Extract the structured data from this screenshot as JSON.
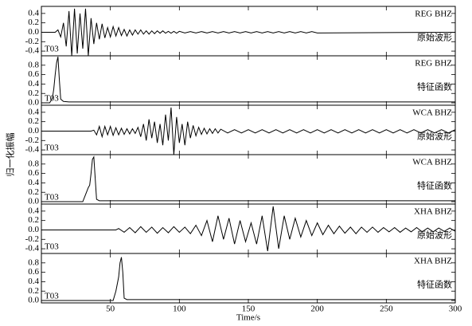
{
  "chart_data": [
    {
      "type": "line",
      "station_label": "REG BHZ",
      "panel_label": "原始波形",
      "phase_label": "T03",
      "xlim": [
        0,
        300
      ],
      "ylim": [
        -0.5,
        0.55
      ],
      "yticks": [
        -0.4,
        -0.2,
        {
          "value": 0,
          "label": "0.0"
        },
        0.2,
        0.4
      ],
      "x": [
        0,
        10,
        12,
        14,
        16,
        18,
        20,
        22,
        24,
        26,
        28,
        30,
        32,
        34,
        36,
        38,
        40,
        42,
        44,
        46,
        48,
        50,
        52,
        54,
        56,
        58,
        60,
        62,
        64,
        66,
        68,
        70,
        72,
        74,
        76,
        78,
        80,
        82,
        84,
        86,
        88,
        90,
        92,
        94,
        96,
        98,
        100,
        104,
        108,
        112,
        116,
        120,
        124,
        128,
        132,
        136,
        140,
        144,
        148,
        152,
        156,
        160,
        164,
        168,
        172,
        176,
        180,
        184,
        188,
        192,
        196,
        200,
        300
      ],
      "values": [
        0,
        0,
        0.05,
        -0.1,
        0.2,
        -0.3,
        0.45,
        -0.5,
        0.5,
        -0.45,
        0.4,
        -0.35,
        0.5,
        -0.5,
        0.3,
        -0.25,
        0.2,
        -0.15,
        0.18,
        -0.12,
        0.1,
        -0.1,
        0.12,
        -0.08,
        0.1,
        -0.07,
        0.06,
        -0.08,
        0.05,
        -0.06,
        0.05,
        -0.04,
        0.05,
        -0.04,
        0.03,
        -0.04,
        0.03,
        -0.03,
        0.03,
        -0.02,
        0.03,
        -0.02,
        0.02,
        -0.02,
        0.02,
        -0.02,
        0.02,
        -0.015,
        0.015,
        -0.015,
        0.015,
        -0.015,
        0.015,
        -0.015,
        0.015,
        -0.015,
        0.015,
        -0.015,
        0.015,
        -0.015,
        0.015,
        -0.015,
        0.015,
        -0.015,
        0.015,
        -0.015,
        0.015,
        -0.015,
        0.015,
        -0.015,
        0.015,
        -0.015,
        0
      ]
    },
    {
      "type": "line",
      "station_label": "REG BHZ",
      "panel_label": "特征函数",
      "phase_label": "T03",
      "xlim": [
        0,
        300
      ],
      "ylim": [
        -0.05,
        1.0
      ],
      "yticks": [
        {
          "value": 0,
          "label": "0.0"
        },
        0.2,
        0.4,
        0.6,
        0.8
      ],
      "x": [
        0,
        6,
        8,
        9,
        10,
        11,
        12,
        13,
        14,
        16,
        20,
        50,
        100,
        200,
        300
      ],
      "values": [
        0,
        0,
        0.1,
        0.3,
        0.6,
        0.85,
        0.98,
        0.5,
        0.08,
        0.03,
        0.02,
        0.02,
        0.02,
        0.02,
        0.02
      ]
    },
    {
      "type": "line",
      "station_label": "WCA BHZ",
      "panel_label": "原始波形",
      "phase_label": "T03",
      "ylabel": "归一化振幅",
      "xlim": [
        0,
        300
      ],
      "ylim": [
        -0.5,
        0.55
      ],
      "yticks": [
        -0.4,
        -0.2,
        {
          "value": 0,
          "label": "0.0"
        },
        0.2,
        0.4
      ],
      "x": [
        0,
        36,
        38,
        40,
        42,
        44,
        46,
        48,
        50,
        52,
        54,
        56,
        58,
        60,
        62,
        64,
        66,
        68,
        70,
        72,
        74,
        76,
        78,
        80,
        82,
        84,
        86,
        88,
        90,
        92,
        94,
        96,
        98,
        100,
        102,
        104,
        106,
        108,
        110,
        112,
        114,
        116,
        118,
        120,
        122,
        124,
        126,
        128,
        130,
        135,
        140,
        145,
        150,
        155,
        160,
        165,
        170,
        175,
        180,
        185,
        190,
        195,
        200,
        205,
        210,
        215,
        220,
        225,
        230,
        235,
        240,
        245,
        250,
        255,
        260,
        265,
        270,
        275,
        280,
        285,
        290,
        295,
        300
      ],
      "values": [
        0,
        0,
        0.02,
        -0.08,
        0.1,
        -0.12,
        0.1,
        -0.08,
        0.1,
        -0.09,
        0.07,
        -0.08,
        0.06,
        -0.07,
        0.05,
        -0.06,
        0.05,
        -0.05,
        0.08,
        -0.12,
        0.15,
        -0.2,
        0.25,
        -0.15,
        0.2,
        -0.25,
        0.15,
        -0.3,
        0.35,
        -0.2,
        0.5,
        -0.5,
        0.3,
        -0.25,
        0.15,
        -0.3,
        0.2,
        -0.15,
        0.12,
        -0.1,
        0.08,
        -0.07,
        0.06,
        -0.06,
        0.05,
        -0.05,
        0.05,
        -0.04,
        0.04,
        -0.04,
        0.03,
        -0.04,
        0.03,
        -0.04,
        0.03,
        -0.04,
        0.03,
        -0.04,
        0.03,
        -0.04,
        0.03,
        -0.04,
        0.03,
        -0.04,
        0.03,
        -0.04,
        0.03,
        -0.04,
        0.03,
        -0.04,
        0.03,
        -0.04,
        0.03,
        -0.04,
        0.03,
        -0.04,
        0.03,
        -0.04,
        0.03,
        -0.04,
        0.03,
        -0.04,
        0.03
      ]
    },
    {
      "type": "line",
      "station_label": "WCA BHZ",
      "panel_label": "特征函数",
      "phase_label": "T03",
      "xlim": [
        0,
        300
      ],
      "ylim": [
        -0.05,
        1.0
      ],
      "yticks": [
        {
          "value": 0,
          "label": "0.0"
        },
        0.2,
        0.4,
        0.6,
        0.8
      ],
      "x": [
        0,
        30,
        32,
        34,
        35,
        36,
        37,
        38,
        39,
        40,
        42,
        100,
        200,
        300
      ],
      "values": [
        0,
        0,
        0.15,
        0.3,
        0.35,
        0.6,
        0.9,
        0.95,
        0.5,
        0.05,
        0.02,
        0.02,
        0.02,
        0.02
      ]
    },
    {
      "type": "line",
      "station_label": "XHA BHZ",
      "panel_label": "原始波形",
      "phase_label": "T03",
      "xlim": [
        0,
        300
      ],
      "ylim": [
        -0.5,
        0.55
      ],
      "yticks": [
        -0.4,
        -0.2,
        {
          "value": 0,
          "label": "0.0"
        },
        0.2,
        0.4
      ],
      "x": [
        0,
        54,
        56,
        60,
        64,
        68,
        72,
        76,
        80,
        84,
        88,
        92,
        96,
        100,
        104,
        108,
        112,
        116,
        120,
        124,
        128,
        132,
        136,
        140,
        144,
        148,
        152,
        156,
        160,
        164,
        168,
        172,
        176,
        180,
        184,
        188,
        192,
        196,
        200,
        204,
        208,
        212,
        216,
        220,
        224,
        228,
        232,
        236,
        240,
        244,
        248,
        252,
        256,
        260,
        264,
        268,
        272,
        276,
        280,
        284,
        288,
        292,
        296,
        300
      ],
      "values": [
        0,
        0,
        0.03,
        -0.05,
        0.05,
        -0.06,
        0.07,
        -0.05,
        0.06,
        -0.07,
        0.05,
        -0.06,
        0.07,
        -0.05,
        0.06,
        -0.08,
        0.1,
        -0.12,
        0.2,
        -0.25,
        0.3,
        -0.2,
        0.25,
        -0.3,
        0.2,
        -0.25,
        0.15,
        -0.3,
        0.3,
        -0.45,
        0.5,
        -0.4,
        0.3,
        -0.2,
        0.25,
        -0.15,
        0.2,
        -0.12,
        0.15,
        -0.1,
        0.1,
        -0.08,
        0.08,
        -0.07,
        0.06,
        -0.08,
        0.06,
        -0.05,
        0.06,
        -0.05,
        0.05,
        -0.04,
        0.05,
        -0.05,
        0.04,
        -0.04,
        0.05,
        -0.04,
        0.04,
        -0.04,
        0.04,
        -0.03,
        0.04,
        -0.03
      ]
    },
    {
      "type": "line",
      "station_label": "XHA BHZ",
      "panel_label": "特征函数",
      "phase_label": "T03",
      "xlabel": "Time/s",
      "xlim": [
        0,
        300
      ],
      "ylim": [
        -0.05,
        1.0
      ],
      "yticks": [
        {
          "value": 0,
          "label": "0.0"
        },
        0.2,
        0.4,
        0.6,
        0.8
      ],
      "xticks": [
        50,
        100,
        150,
        200,
        250,
        300
      ],
      "x": [
        0,
        52,
        54,
        56,
        57,
        58,
        59,
        60,
        62,
        150,
        300
      ],
      "values": [
        0,
        0,
        0.2,
        0.5,
        0.8,
        0.92,
        0.6,
        0.05,
        0.02,
        0.02,
        0.02
      ]
    }
  ]
}
